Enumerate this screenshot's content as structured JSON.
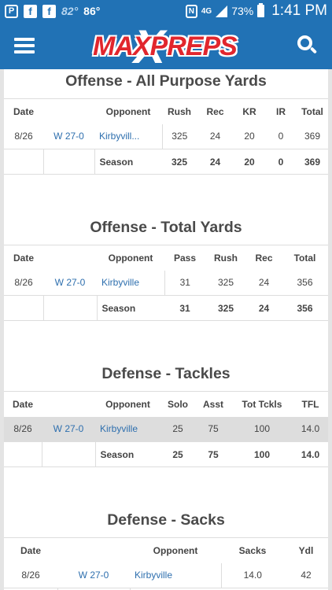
{
  "status_bar": {
    "temp_current": "82°",
    "temp_high": "86°",
    "network": "4G",
    "battery": "73%",
    "time": "1:41 PM"
  },
  "header": {
    "logo_text": "MAXPREPS",
    "logo_x": "X"
  },
  "sections": [
    {
      "title": "Offense - All Purpose Yards",
      "columns": [
        "Date",
        "",
        "Opponent",
        "Rush",
        "Rec",
        "KR",
        "IR",
        "Total"
      ],
      "row": [
        "8/26",
        "W 27-0",
        "Kirbyvill...",
        "325",
        "24",
        "20",
        "0",
        "369"
      ],
      "season": [
        "Season",
        "325",
        "24",
        "20",
        "0",
        "369"
      ]
    },
    {
      "title": "Offense - Total Yards",
      "columns": [
        "Date",
        "",
        "Opponent",
        "Pass",
        "Rush",
        "Rec",
        "Total"
      ],
      "row": [
        "8/26",
        "W 27-0",
        "Kirbyville",
        "31",
        "325",
        "24",
        "356"
      ],
      "season": [
        "Season",
        "31",
        "325",
        "24",
        "356"
      ]
    },
    {
      "title": "Defense - Tackles",
      "columns": [
        "Date",
        "",
        "Opponent",
        "Solo",
        "Asst",
        "Tot Tckls",
        "TFL"
      ],
      "row": [
        "8/26",
        "W 27-0",
        "Kirbyville",
        "25",
        "75",
        "100",
        "14.0"
      ],
      "season": [
        "Season",
        "25",
        "75",
        "100",
        "14.0"
      ]
    },
    {
      "title": "Defense - Sacks",
      "columns": [
        "Date",
        "",
        "Opponent",
        "Sacks",
        "Ydl"
      ],
      "row": [
        "8/26",
        "W 27-0",
        "Kirbyville",
        "14.0",
        "42"
      ]
    }
  ]
}
